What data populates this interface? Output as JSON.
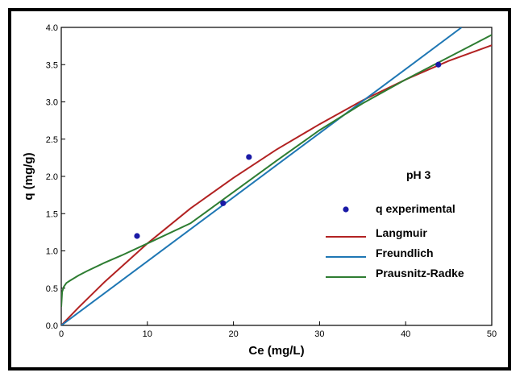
{
  "chart_data": {
    "type": "scatter",
    "xlabel": "Ce (mg/L)",
    "ylabel": "q (mg/g)",
    "xlim": [
      0,
      50
    ],
    "ylim": [
      0,
      4.0
    ],
    "x_ticks": [
      "0",
      "10",
      "20",
      "30",
      "40",
      "50"
    ],
    "y_ticks": [
      "0.0",
      "0.5",
      "1.0",
      "1.5",
      "2.0",
      "2.5",
      "3.0",
      "3.5",
      "4.0"
    ],
    "annotation": "pH 3",
    "grid": false,
    "legend_position": "right",
    "series": [
      {
        "name": "q experimental",
        "kind": "points",
        "color": "#1a1aa6",
        "x": [
          8.8,
          18.8,
          21.8,
          43.8
        ],
        "y": [
          1.2,
          1.64,
          2.26,
          3.5
        ]
      },
      {
        "name": "Langmuir",
        "kind": "line",
        "color": "#b22222",
        "x": [
          0,
          2,
          5,
          10,
          15,
          20,
          25,
          30,
          35,
          40,
          45,
          50
        ],
        "y": [
          0,
          0.24,
          0.58,
          1.1,
          1.57,
          1.98,
          2.36,
          2.7,
          3.02,
          3.3,
          3.55,
          3.76
        ]
      },
      {
        "name": "Freundlich",
        "kind": "line",
        "color": "#1f77b4",
        "x": [
          0,
          10,
          20,
          30,
          40,
          46.5
        ],
        "y": [
          0,
          0.86,
          1.72,
          2.58,
          3.44,
          4.0
        ]
      },
      {
        "name": "Prausnitz-Radke",
        "kind": "line",
        "color": "#2e7d32",
        "x": [
          0,
          0.1,
          0.3,
          0.6,
          1,
          2,
          3,
          5,
          7,
          10,
          15,
          20,
          25,
          30,
          35,
          40,
          45,
          50
        ],
        "y": [
          0.25,
          0.45,
          0.52,
          0.57,
          0.6,
          0.67,
          0.73,
          0.84,
          0.94,
          1.1,
          1.37,
          1.79,
          2.21,
          2.62,
          2.98,
          3.3,
          3.6,
          3.9
        ]
      }
    ]
  }
}
